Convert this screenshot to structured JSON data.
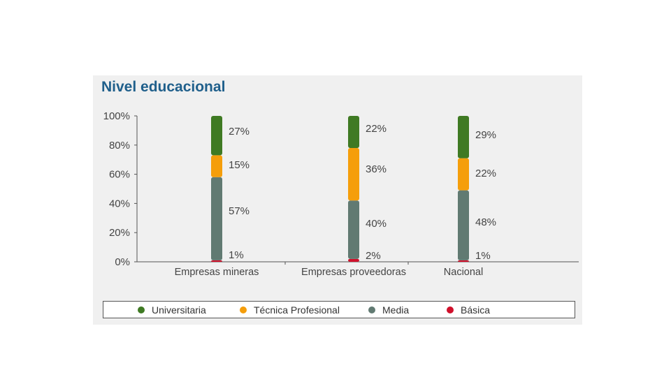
{
  "chart_data": {
    "type": "bar",
    "stacked": true,
    "title": "Nivel educacional",
    "xlabel": "",
    "ylabel": "",
    "ylim": [
      0,
      100
    ],
    "yticks": [
      "0%",
      "20%",
      "40%",
      "60%",
      "80%",
      "100%"
    ],
    "categories": [
      "Empresas mineras",
      "Empresas proveedoras",
      "Nacional"
    ],
    "series": [
      {
        "name": "Básica",
        "color": "#d0102b",
        "values": [
          1,
          2,
          1
        ],
        "labels": [
          "1%",
          "2%",
          "1%"
        ]
      },
      {
        "name": "Media",
        "color": "#617a72",
        "values": [
          57,
          40,
          48
        ],
        "labels": [
          "57%",
          "40%",
          "48%"
        ]
      },
      {
        "name": "Técnica Profesional",
        "color": "#f59e0b",
        "values": [
          15,
          36,
          22
        ],
        "labels": [
          "15%",
          "36%",
          "22%"
        ]
      },
      {
        "name": "Universitaria",
        "color": "#3f7a23",
        "values": [
          27,
          22,
          29
        ],
        "labels": [
          "27%",
          "22%",
          "29%"
        ]
      }
    ],
    "legend_position": "bottom",
    "grid": false
  },
  "legend": {
    "items": [
      {
        "label": "Universitaria",
        "color": "#3f7a23"
      },
      {
        "label": "Técnica Profesional",
        "color": "#f59e0b"
      },
      {
        "label": "Media",
        "color": "#617a72"
      },
      {
        "label": "Básica",
        "color": "#d0102b"
      }
    ]
  }
}
